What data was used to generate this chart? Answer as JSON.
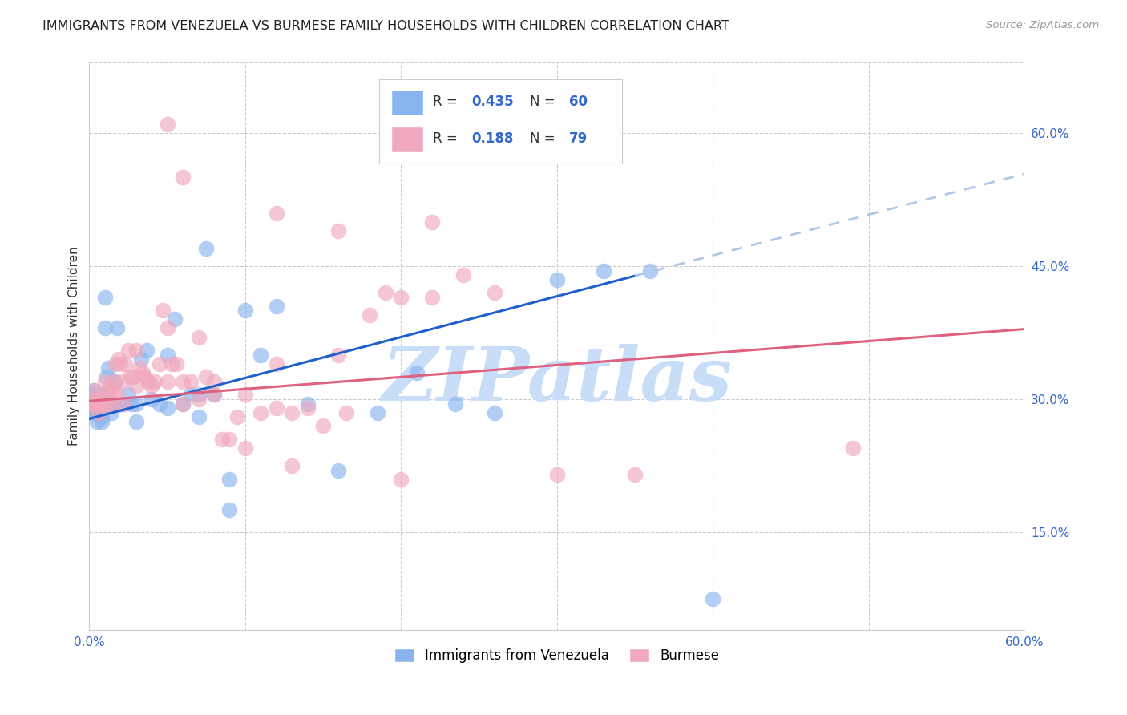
{
  "title": "IMMIGRANTS FROM VENEZUELA VS BURMESE FAMILY HOUSEHOLDS WITH CHILDREN CORRELATION CHART",
  "source": "Source: ZipAtlas.com",
  "ylabel": "Family Households with Children",
  "xlim": [
    0.0,
    0.6
  ],
  "ylim": [
    0.04,
    0.68
  ],
  "xtick_labels": [
    "0.0%",
    "",
    "",
    "",
    "",
    "",
    "60.0%"
  ],
  "yticks_right": [
    0.15,
    0.3,
    0.45,
    0.6
  ],
  "ytick_labels_right": [
    "15.0%",
    "30.0%",
    "45.0%",
    "60.0%"
  ],
  "grid_color": "#cccccc",
  "background_color": "#ffffff",
  "series1_color": "#8ab4f0",
  "series2_color": "#f0a8bc",
  "trend1_color": "#2060cc",
  "trend2_color": "#e06080",
  "trend1_dash_color": "#b0c8e8",
  "R1": 0.435,
  "N1": 60,
  "R2": 0.188,
  "N2": 79,
  "legend1_label": "Immigrants from Venezuela",
  "legend2_label": "Burmese",
  "watermark": "ZIPatlas",
  "watermark_color": "#c8ddf8",
  "trend1_intercept": 0.278,
  "trend1_slope": 0.46,
  "trend2_intercept": 0.298,
  "trend2_slope": 0.135,
  "series1_x": [
    0.001,
    0.002,
    0.002,
    0.003,
    0.003,
    0.004,
    0.004,
    0.005,
    0.005,
    0.006,
    0.006,
    0.007,
    0.007,
    0.008,
    0.008,
    0.009,
    0.009,
    0.01,
    0.01,
    0.011,
    0.012,
    0.013,
    0.014,
    0.015,
    0.016,
    0.018,
    0.02,
    0.022,
    0.025,
    0.027,
    0.03,
    0.033,
    0.037,
    0.04,
    0.045,
    0.05,
    0.055,
    0.06,
    0.065,
    0.07,
    0.075,
    0.08,
    0.09,
    0.1,
    0.11,
    0.12,
    0.14,
    0.16,
    0.185,
    0.21,
    0.235,
    0.26,
    0.03,
    0.05,
    0.07,
    0.09,
    0.3,
    0.33,
    0.36,
    0.4
  ],
  "series1_y": [
    0.295,
    0.285,
    0.305,
    0.29,
    0.31,
    0.295,
    0.285,
    0.3,
    0.275,
    0.295,
    0.285,
    0.3,
    0.295,
    0.275,
    0.28,
    0.295,
    0.305,
    0.415,
    0.38,
    0.325,
    0.335,
    0.295,
    0.285,
    0.295,
    0.32,
    0.38,
    0.295,
    0.295,
    0.305,
    0.295,
    0.295,
    0.345,
    0.355,
    0.3,
    0.295,
    0.35,
    0.39,
    0.295,
    0.305,
    0.305,
    0.47,
    0.305,
    0.21,
    0.4,
    0.35,
    0.405,
    0.295,
    0.22,
    0.285,
    0.33,
    0.295,
    0.285,
    0.275,
    0.29,
    0.28,
    0.175,
    0.435,
    0.445,
    0.445,
    0.075
  ],
  "series2_x": [
    0.001,
    0.002,
    0.003,
    0.004,
    0.005,
    0.005,
    0.006,
    0.007,
    0.007,
    0.008,
    0.009,
    0.01,
    0.011,
    0.012,
    0.013,
    0.014,
    0.015,
    0.016,
    0.017,
    0.018,
    0.019,
    0.02,
    0.021,
    0.022,
    0.023,
    0.025,
    0.026,
    0.028,
    0.03,
    0.032,
    0.034,
    0.036,
    0.038,
    0.04,
    0.042,
    0.045,
    0.047,
    0.05,
    0.053,
    0.056,
    0.06,
    0.065,
    0.07,
    0.075,
    0.08,
    0.085,
    0.09,
    0.095,
    0.1,
    0.11,
    0.12,
    0.13,
    0.14,
    0.15,
    0.165,
    0.18,
    0.2,
    0.22,
    0.24,
    0.26,
    0.06,
    0.12,
    0.16,
    0.19,
    0.22,
    0.06,
    0.08,
    0.12,
    0.16,
    0.03,
    0.05,
    0.07,
    0.1,
    0.13,
    0.49,
    0.2,
    0.3,
    0.35,
    0.05
  ],
  "series2_y": [
    0.295,
    0.295,
    0.31,
    0.295,
    0.3,
    0.295,
    0.285,
    0.295,
    0.3,
    0.295,
    0.305,
    0.32,
    0.295,
    0.305,
    0.315,
    0.295,
    0.31,
    0.32,
    0.34,
    0.305,
    0.345,
    0.34,
    0.32,
    0.295,
    0.34,
    0.355,
    0.325,
    0.325,
    0.315,
    0.335,
    0.33,
    0.325,
    0.32,
    0.315,
    0.32,
    0.34,
    0.4,
    0.32,
    0.34,
    0.34,
    0.32,
    0.32,
    0.3,
    0.325,
    0.32,
    0.255,
    0.255,
    0.28,
    0.305,
    0.285,
    0.29,
    0.285,
    0.29,
    0.27,
    0.285,
    0.395,
    0.415,
    0.415,
    0.44,
    0.42,
    0.55,
    0.51,
    0.49,
    0.42,
    0.5,
    0.295,
    0.305,
    0.34,
    0.35,
    0.355,
    0.38,
    0.37,
    0.245,
    0.225,
    0.245,
    0.21,
    0.215,
    0.215,
    0.61
  ]
}
